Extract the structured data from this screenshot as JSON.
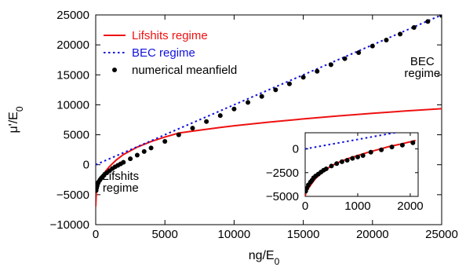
{
  "chart_data": [
    {
      "panel": "main",
      "type": "line",
      "xlabel": "ng/E",
      "xlabel_sub": "0",
      "ylabel": "μ'/E",
      "ylabel_sub": "0",
      "xlim": [
        0,
        25000
      ],
      "ylim": [
        -10000,
        25000
      ],
      "xticks": [
        0,
        5000,
        10000,
        15000,
        20000,
        25000
      ],
      "yticks": [
        -10000,
        -5000,
        0,
        5000,
        10000,
        15000,
        20000,
        25000
      ],
      "legend_position": "top-left",
      "grid": false,
      "annotations": [
        {
          "lines": [
            "Lifshits",
            "regime"
          ],
          "at": [
            1800,
            -2500
          ]
        },
        {
          "lines": [
            "BEC",
            "regime"
          ],
          "at": [
            23600,
            16600
          ]
        }
      ],
      "series": [
        {
          "name": "Lifshits regime",
          "style": "solid",
          "color": "#ee1111",
          "x": [
            0,
            50,
            100,
            200,
            400,
            700,
            1000,
            1500,
            2000,
            3000,
            4000,
            5000,
            6000,
            7500,
            9000,
            10000,
            12500,
            15000,
            17500,
            20000,
            22500,
            25000
          ],
          "y": [
            -7000,
            -4270,
            -3800,
            -3130,
            -2180,
            -1120,
            -280,
            830,
            1700,
            2940,
            3870,
            4630,
            5290,
            5760,
            6220,
            6500,
            7110,
            7650,
            8140,
            8580,
            8990,
            9350
          ]
        },
        {
          "name": "BEC regime",
          "style": "dotted",
          "color": "#1111dd",
          "x": [
            0,
            25000
          ],
          "y": [
            0,
            25000
          ]
        },
        {
          "name": "numerical meanfield",
          "style": "markers",
          "color": "#000000",
          "x": [
            30,
            60,
            100,
            150,
            200,
            300,
            400,
            500,
            600,
            800,
            1000,
            1200,
            1400,
            1600,
            1800,
            2000,
            2500,
            3000,
            3500,
            4000,
            5000,
            6000,
            7000,
            8000,
            9000,
            10000,
            11000,
            12000,
            13000,
            14000,
            15000,
            16000,
            17000,
            18000,
            19000,
            20000,
            21000,
            22000,
            23000,
            24000,
            25000
          ],
          "y": [
            -4300,
            -3900,
            -3550,
            -3150,
            -2900,
            -2550,
            -2250,
            -2000,
            -1750,
            -1350,
            -1000,
            -650,
            -350,
            -100,
            150,
            400,
            1000,
            1600,
            2200,
            2800,
            3900,
            5000,
            6100,
            7200,
            8200,
            9300,
            10400,
            11400,
            12500,
            13500,
            14600,
            15600,
            16700,
            17700,
            18700,
            19800,
            20800,
            21800,
            22900,
            23900,
            24900
          ]
        }
      ]
    },
    {
      "panel": "inset",
      "type": "line",
      "xlim": [
        0,
        2150
      ],
      "ylim": [
        -5000,
        1700
      ],
      "xticks": [
        0,
        1000,
        2000
      ],
      "yticks": [
        -5000,
        -2500,
        0
      ],
      "series": [
        {
          "name": "Lifshits regime",
          "style": "solid",
          "color": "#ee1111",
          "x": [
            0,
            10,
            25,
            50,
            75,
            100,
            150,
            200,
            300,
            400,
            500,
            600,
            800,
            1000,
            1200,
            1400,
            1600,
            1800,
            2000,
            2100
          ],
          "y": [
            -5000,
            -4700,
            -4470,
            -4250,
            -4050,
            -3850,
            -3450,
            -3100,
            -2600,
            -2150,
            -1800,
            -1500,
            -1050,
            -700,
            -350,
            -50,
            250,
            480,
            750,
            880
          ]
        },
        {
          "name": "BEC regime",
          "style": "dotted",
          "color": "#1111dd",
          "x": [
            0,
            2150
          ],
          "y": [
            0,
            2150
          ]
        },
        {
          "name": "numerical meanfield",
          "style": "markers",
          "color": "#000000",
          "x": [
            10,
            30,
            60,
            100,
            130,
            160,
            200,
            250,
            300,
            350,
            400,
            500,
            600,
            700,
            800,
            900,
            1000,
            1100,
            1250,
            1450,
            1650,
            1850,
            2050
          ],
          "y": [
            -4450,
            -4150,
            -3800,
            -3500,
            -3300,
            -3050,
            -2850,
            -2650,
            -2450,
            -2250,
            -2100,
            -1800,
            -1550,
            -1350,
            -1200,
            -1000,
            -850,
            -700,
            -350,
            -100,
            200,
            400,
            650
          ]
        }
      ]
    }
  ]
}
